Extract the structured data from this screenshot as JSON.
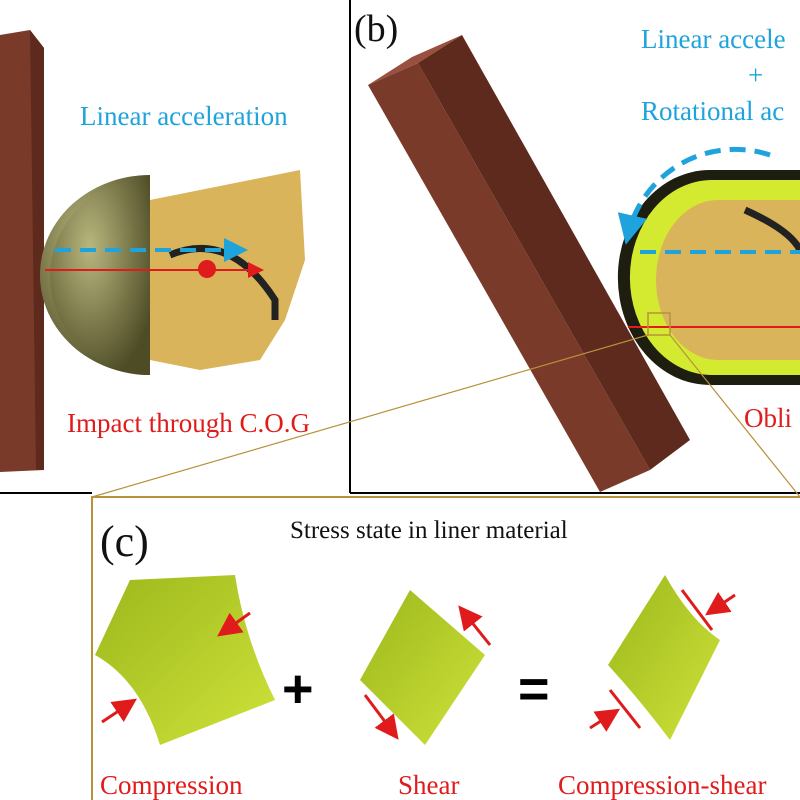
{
  "panel_a": {
    "linear_label": "Linear acceleration",
    "impact_label": "Impact through C.O.G"
  },
  "panel_b": {
    "tag": "(b)",
    "linear_label": "Linear accele",
    "plus": "+",
    "rotational_label": "Rotational ac",
    "oblique_label": "Obli"
  },
  "panel_c": {
    "tag": "(c)",
    "title": "Stress state in liner material",
    "plus": "+",
    "equals": "=",
    "items": [
      "Compression",
      "Shear",
      "Compression-shear"
    ]
  },
  "colors": {
    "brick": "#7a3a2a",
    "helmet": "#7c7a45",
    "liner": "#c8dd2a",
    "arrow_cyan": "#1fa3dc",
    "arrow_red": "#e01b1b",
    "frame": "#b8923a"
  }
}
